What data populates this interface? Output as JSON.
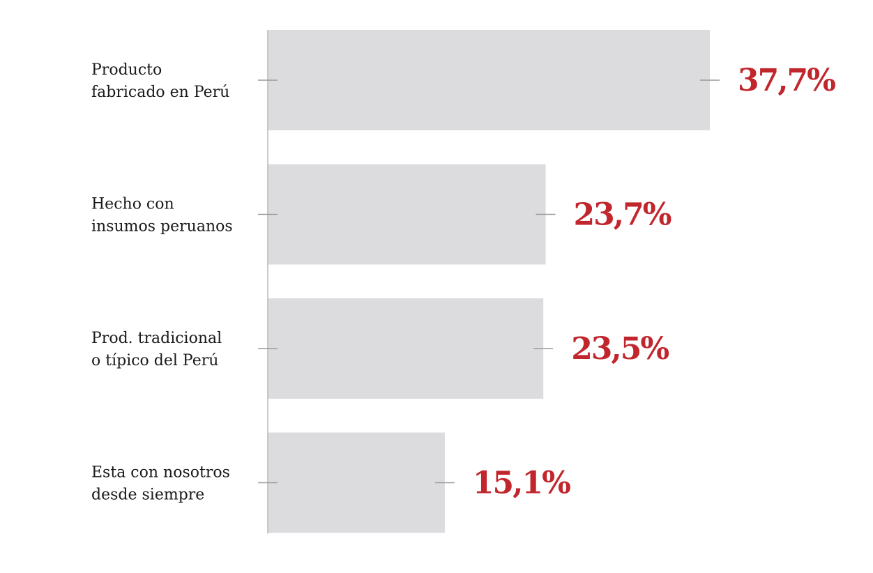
{
  "chart_data": {
    "type": "bar",
    "orientation": "horizontal",
    "categories": [
      [
        "Producto",
        "fabricado en Perú"
      ],
      [
        "Hecho con",
        "insumos peruanos"
      ],
      [
        "Prod. tradicional",
        "o típico del Perú"
      ],
      [
        "Esta con nosotros",
        "desde siempre"
      ]
    ],
    "values": [
      37.7,
      23.7,
      23.5,
      15.1
    ],
    "value_labels": [
      "37,7%",
      "23,7%",
      "23,5%",
      "15,1%"
    ],
    "xlim": [
      0,
      40
    ],
    "title": "",
    "xlabel": "",
    "ylabel": "",
    "grid": false,
    "colors": {
      "bar": "#dcdcdf",
      "value_text": "#c1262d",
      "axis": "#b8b8b8",
      "tick": "#9a9a9a"
    }
  }
}
